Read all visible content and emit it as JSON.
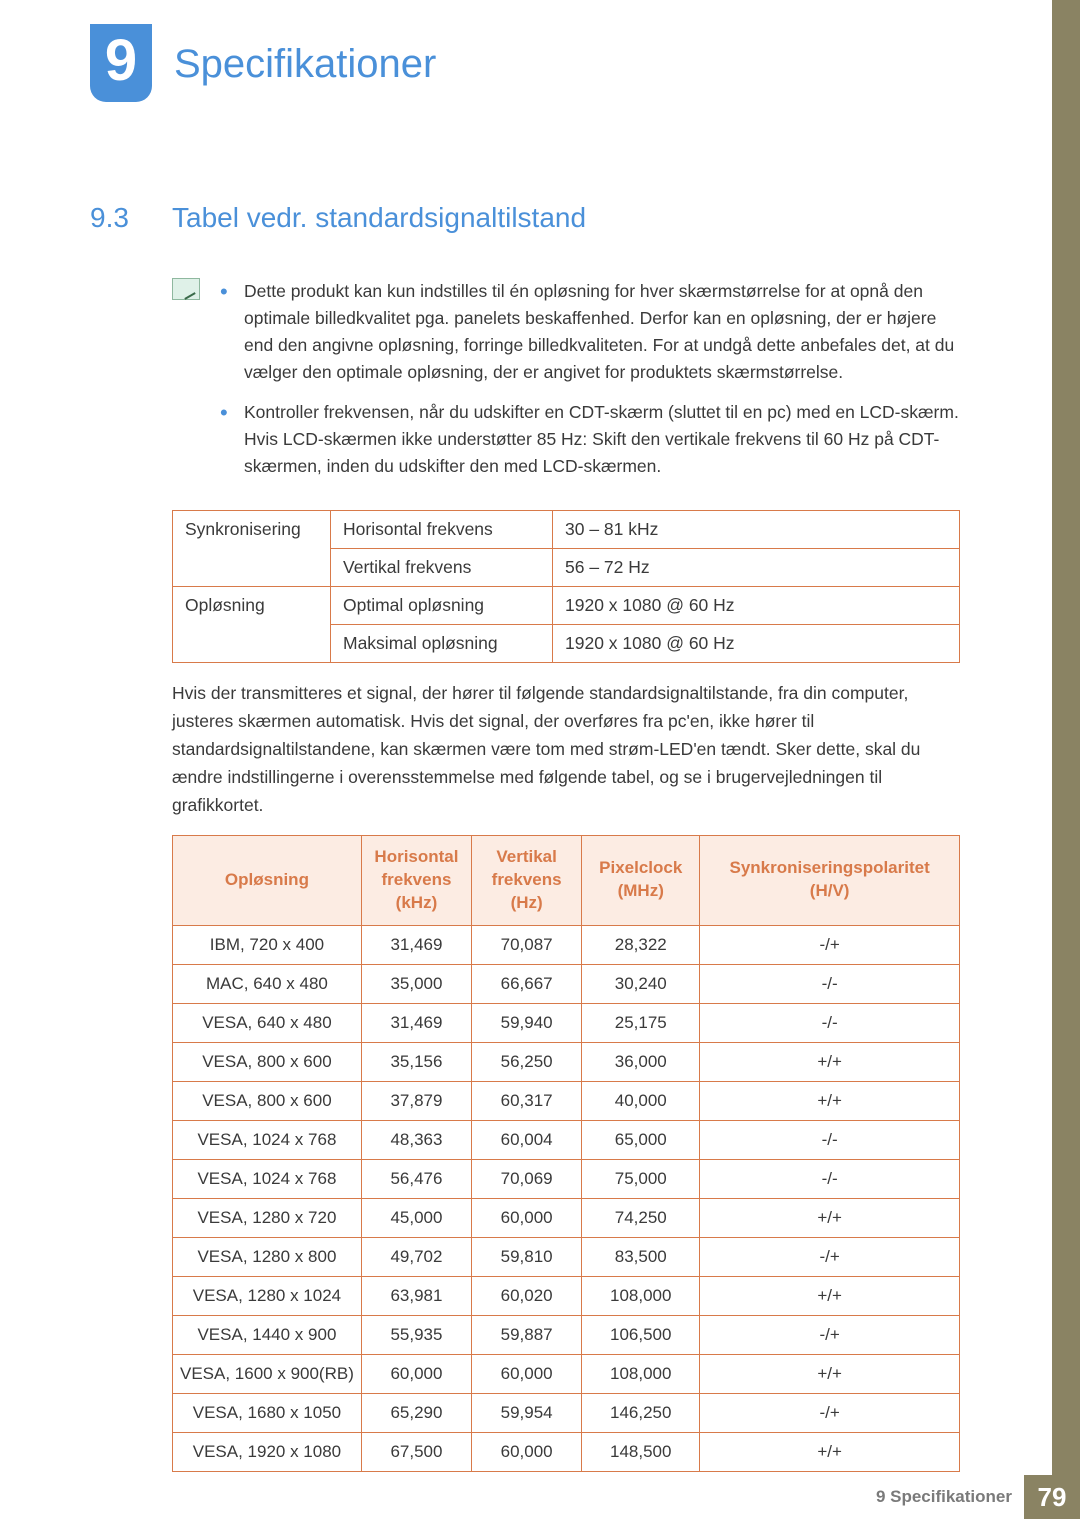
{
  "colors": {
    "accent_blue": "#4a90d9",
    "accent_orange": "#d87a4a",
    "header_bg": "#fcece3",
    "sidebar": "#8a8363",
    "text": "#3a3a3a",
    "footer_text": "#7a7a7a"
  },
  "chapter": {
    "number": "9",
    "title": "Specifikationer"
  },
  "section": {
    "number": "9.3",
    "title": "Tabel vedr. standardsignaltilstand"
  },
  "notes": [
    "Dette produkt kan kun indstilles til én opløsning for hver skærmstørrelse for at opnå den optimale billedkvalitet pga. panelets beskaffenhed. Derfor kan en opløsning, der er højere end den angivne opløsning, forringe billedkvaliteten. For at undgå dette anbefales det, at du vælger den optimale opløsning, der er angivet for produktets skærmstørrelse.",
    "Kontroller frekvensen, når du udskifter en CDT-skærm (sluttet til en pc) med en LCD-skærm. Hvis LCD-skærmen ikke understøtter 85 Hz: Skift den vertikale frekvens til 60 Hz på CDT-skærmen, inden du udskifter den med LCD-skærmen."
  ],
  "sync_table": {
    "rows": [
      {
        "group": "Synkronisering",
        "label": "Horisontal frekvens",
        "value": "30 – 81 kHz"
      },
      {
        "group": "",
        "label": "Vertikal frekvens",
        "value": "56 – 72 Hz"
      },
      {
        "group": "Opløsning",
        "label": "Optimal opløsning",
        "value": "1920 x 1080 @ 60 Hz"
      },
      {
        "group": "",
        "label": "Maksimal opløsning",
        "value": "1920 x 1080 @ 60 Hz"
      }
    ]
  },
  "body_para": "Hvis der transmitteres et signal, der hører til følgende standardsignaltilstande, fra din computer, justeres skærmen automatisk. Hvis det signal, der overføres fra pc'en, ikke hører til standardsignaltilstandene, kan skærmen være tom med strøm-LED'en tændt. Sker dette, skal du ændre indstillingerne i overensstemmelse med følgende tabel, og se i brugervejledningen til grafikkortet.",
  "signal_table": {
    "columns": [
      "Opløsning",
      "Horisontal frekvens (kHz)",
      "Vertikal frekvens (Hz)",
      "Pixelclock (MHz)",
      "Synkroniseringspolaritet (H/V)"
    ],
    "col_widths_pct": [
      24,
      14,
      14,
      15,
      33
    ],
    "rows": [
      [
        "IBM, 720 x 400",
        "31,469",
        "70,087",
        "28,322",
        "-/+"
      ],
      [
        "MAC, 640 x 480",
        "35,000",
        "66,667",
        "30,240",
        "-/-"
      ],
      [
        "VESA, 640 x 480",
        "31,469",
        "59,940",
        "25,175",
        "-/-"
      ],
      [
        "VESA, 800 x 600",
        "35,156",
        "56,250",
        "36,000",
        "+/+"
      ],
      [
        "VESA, 800 x 600",
        "37,879",
        "60,317",
        "40,000",
        "+/+"
      ],
      [
        "VESA, 1024 x 768",
        "48,363",
        "60,004",
        "65,000",
        "-/-"
      ],
      [
        "VESA, 1024 x 768",
        "56,476",
        "70,069",
        "75,000",
        "-/-"
      ],
      [
        "VESA, 1280 x 720",
        "45,000",
        "60,000",
        "74,250",
        "+/+"
      ],
      [
        "VESA, 1280 x 800",
        "49,702",
        "59,810",
        "83,500",
        "-/+"
      ],
      [
        "VESA, 1280 x 1024",
        "63,981",
        "60,020",
        "108,000",
        "+/+"
      ],
      [
        "VESA, 1440 x 900",
        "55,935",
        "59,887",
        "106,500",
        "-/+"
      ],
      [
        "VESA, 1600 x 900(RB)",
        "60,000",
        "60,000",
        "108,000",
        "+/+"
      ],
      [
        "VESA, 1680 x 1050",
        "65,290",
        "59,954",
        "146,250",
        "-/+"
      ],
      [
        "VESA, 1920 x 1080",
        "67,500",
        "60,000",
        "148,500",
        "+/+"
      ]
    ]
  },
  "footer": {
    "text": "9 Specifikationer",
    "page": "79"
  }
}
